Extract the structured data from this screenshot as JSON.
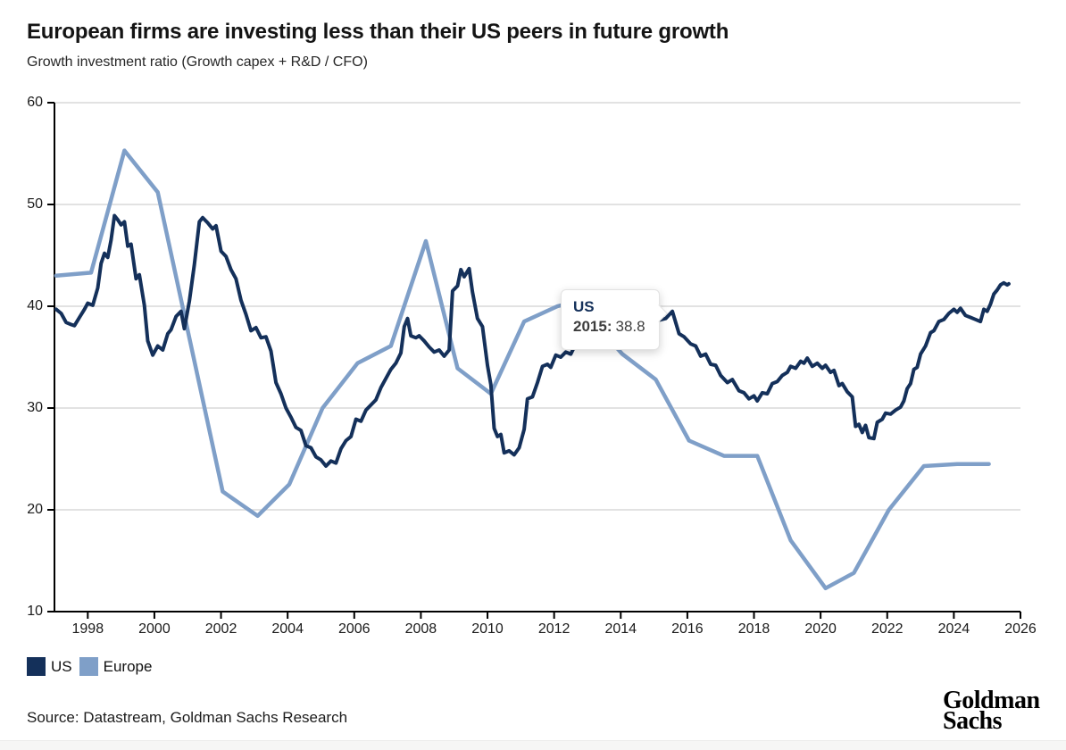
{
  "chart_data": {
    "type": "line",
    "title": "European firms are investing less than their US peers in future growth",
    "subtitle": "Growth investment ratio (Growth capex + R&D / CFO)",
    "xlabel": "",
    "ylabel": "Growth investment ratio (Growth capex + R&D / CFO)",
    "xlim": [
      1997,
      2026
    ],
    "ylim": [
      10,
      60
    ],
    "x_ticks": [
      1998,
      2000,
      2002,
      2004,
      2006,
      2008,
      2010,
      2012,
      2014,
      2016,
      2018,
      2020,
      2022,
      2024,
      2026
    ],
    "y_ticks": [
      10,
      20,
      30,
      40,
      50,
      60
    ],
    "grid": "horizontal",
    "gridline_color": "#d9d9d9",
    "axis_color": "#000000",
    "legend_position": "bottom-left",
    "series": [
      {
        "name": "US",
        "color": "#14305a",
        "width": 4,
        "points": [
          [
            1997.05,
            39.7
          ],
          [
            1997.2,
            39.3
          ],
          [
            1997.35,
            38.4
          ],
          [
            1997.5,
            38.2
          ],
          [
            1997.6,
            38.1
          ],
          [
            1997.75,
            38.9
          ],
          [
            1997.9,
            39.7
          ],
          [
            1998.0,
            40.3
          ],
          [
            1998.15,
            40.1
          ],
          [
            1998.3,
            41.8
          ],
          [
            1998.4,
            44.2
          ],
          [
            1998.5,
            45.2
          ],
          [
            1998.6,
            44.8
          ],
          [
            1998.7,
            46.5
          ],
          [
            1998.8,
            48.9
          ],
          [
            1998.9,
            48.5
          ],
          [
            1999.0,
            48.0
          ],
          [
            1999.1,
            48.3
          ],
          [
            1999.2,
            45.9
          ],
          [
            1999.3,
            46.1
          ],
          [
            1999.45,
            42.7
          ],
          [
            1999.55,
            43.1
          ],
          [
            1999.7,
            40.1
          ],
          [
            1999.8,
            36.6
          ],
          [
            1999.95,
            35.2
          ],
          [
            2000.1,
            36.1
          ],
          [
            2000.25,
            35.7
          ],
          [
            2000.4,
            37.3
          ],
          [
            2000.5,
            37.7
          ],
          [
            2000.65,
            39.0
          ],
          [
            2000.8,
            39.5
          ],
          [
            2000.9,
            37.8
          ],
          [
            2001.05,
            40.5
          ],
          [
            2001.2,
            44.1
          ],
          [
            2001.35,
            48.3
          ],
          [
            2001.45,
            48.7
          ],
          [
            2001.6,
            48.2
          ],
          [
            2001.75,
            47.6
          ],
          [
            2001.85,
            47.9
          ],
          [
            2002.0,
            45.4
          ],
          [
            2002.15,
            44.9
          ],
          [
            2002.3,
            43.6
          ],
          [
            2002.45,
            42.7
          ],
          [
            2002.6,
            40.6
          ],
          [
            2002.75,
            39.2
          ],
          [
            2002.9,
            37.6
          ],
          [
            2003.05,
            37.9
          ],
          [
            2003.2,
            36.9
          ],
          [
            2003.35,
            37.0
          ],
          [
            2003.5,
            35.6
          ],
          [
            2003.65,
            32.5
          ],
          [
            2003.8,
            31.4
          ],
          [
            2003.95,
            30.0
          ],
          [
            2004.1,
            29.1
          ],
          [
            2004.25,
            28.1
          ],
          [
            2004.4,
            27.8
          ],
          [
            2004.55,
            26.3
          ],
          [
            2004.7,
            26.1
          ],
          [
            2004.85,
            25.2
          ],
          [
            2005.0,
            24.9
          ],
          [
            2005.15,
            24.3
          ],
          [
            2005.3,
            24.8
          ],
          [
            2005.45,
            24.6
          ],
          [
            2005.6,
            26.0
          ],
          [
            2005.75,
            26.8
          ],
          [
            2005.9,
            27.2
          ],
          [
            2006.05,
            28.9
          ],
          [
            2006.2,
            28.7
          ],
          [
            2006.35,
            29.8
          ],
          [
            2006.5,
            30.3
          ],
          [
            2006.65,
            30.8
          ],
          [
            2006.8,
            32.0
          ],
          [
            2006.95,
            32.9
          ],
          [
            2007.1,
            33.8
          ],
          [
            2007.25,
            34.4
          ],
          [
            2007.4,
            35.4
          ],
          [
            2007.5,
            38.0
          ],
          [
            2007.6,
            38.8
          ],
          [
            2007.7,
            37.1
          ],
          [
            2007.85,
            36.9
          ],
          [
            2007.95,
            37.1
          ],
          [
            2008.1,
            36.6
          ],
          [
            2008.25,
            36.0
          ],
          [
            2008.4,
            35.5
          ],
          [
            2008.55,
            35.7
          ],
          [
            2008.7,
            35.1
          ],
          [
            2008.85,
            35.7
          ],
          [
            2008.95,
            41.5
          ],
          [
            2009.1,
            42.0
          ],
          [
            2009.2,
            43.6
          ],
          [
            2009.3,
            42.9
          ],
          [
            2009.45,
            43.7
          ],
          [
            2009.55,
            41.4
          ],
          [
            2009.7,
            38.8
          ],
          [
            2009.85,
            38.0
          ],
          [
            2010.0,
            34.2
          ],
          [
            2010.1,
            32.3
          ],
          [
            2010.2,
            28.0
          ],
          [
            2010.3,
            27.2
          ],
          [
            2010.4,
            27.4
          ],
          [
            2010.5,
            25.6
          ],
          [
            2010.65,
            25.8
          ],
          [
            2010.8,
            25.4
          ],
          [
            2010.95,
            26.1
          ],
          [
            2011.1,
            27.9
          ],
          [
            2011.2,
            30.9
          ],
          [
            2011.35,
            31.1
          ],
          [
            2011.5,
            32.5
          ],
          [
            2011.65,
            34.1
          ],
          [
            2011.8,
            34.3
          ],
          [
            2011.9,
            34.0
          ],
          [
            2012.05,
            35.2
          ],
          [
            2012.2,
            35.0
          ],
          [
            2012.35,
            35.5
          ],
          [
            2012.5,
            35.3
          ],
          [
            2012.65,
            36.3
          ],
          [
            2012.8,
            36.2
          ],
          [
            2012.95,
            37.1
          ],
          [
            2013.3,
            37.8
          ],
          [
            2013.8,
            38.4
          ],
          [
            2014.3,
            38.8
          ],
          [
            2014.8,
            38.5
          ],
          [
            2015.1,
            38.6
          ],
          [
            2015.35,
            38.8
          ],
          [
            2015.55,
            39.5
          ],
          [
            2015.75,
            37.3
          ],
          [
            2015.9,
            37.0
          ],
          [
            2016.1,
            36.3
          ],
          [
            2016.25,
            36.1
          ],
          [
            2016.4,
            35.1
          ],
          [
            2016.55,
            35.3
          ],
          [
            2016.7,
            34.3
          ],
          [
            2016.85,
            34.2
          ],
          [
            2017.0,
            33.2
          ],
          [
            2017.2,
            32.5
          ],
          [
            2017.35,
            32.8
          ],
          [
            2017.55,
            31.7
          ],
          [
            2017.7,
            31.5
          ],
          [
            2017.85,
            30.9
          ],
          [
            2018.0,
            31.2
          ],
          [
            2018.1,
            30.7
          ],
          [
            2018.25,
            31.5
          ],
          [
            2018.4,
            31.4
          ],
          [
            2018.55,
            32.4
          ],
          [
            2018.7,
            32.6
          ],
          [
            2018.85,
            33.2
          ],
          [
            2019.0,
            33.5
          ],
          [
            2019.1,
            34.1
          ],
          [
            2019.25,
            33.9
          ],
          [
            2019.4,
            34.6
          ],
          [
            2019.5,
            34.4
          ],
          [
            2019.6,
            34.9
          ],
          [
            2019.75,
            34.1
          ],
          [
            2019.9,
            34.4
          ],
          [
            2020.05,
            33.9
          ],
          [
            2020.15,
            34.2
          ],
          [
            2020.3,
            33.5
          ],
          [
            2020.4,
            33.7
          ],
          [
            2020.55,
            32.2
          ],
          [
            2020.65,
            32.4
          ],
          [
            2020.8,
            31.6
          ],
          [
            2020.95,
            31.1
          ],
          [
            2021.05,
            28.2
          ],
          [
            2021.15,
            28.4
          ],
          [
            2021.25,
            27.6
          ],
          [
            2021.35,
            28.3
          ],
          [
            2021.45,
            27.1
          ],
          [
            2021.6,
            27.0
          ],
          [
            2021.7,
            28.6
          ],
          [
            2021.85,
            28.9
          ],
          [
            2021.95,
            29.5
          ],
          [
            2022.1,
            29.4
          ],
          [
            2022.25,
            29.8
          ],
          [
            2022.4,
            30.1
          ],
          [
            2022.5,
            30.7
          ],
          [
            2022.6,
            31.9
          ],
          [
            2022.7,
            32.4
          ],
          [
            2022.8,
            33.8
          ],
          [
            2022.9,
            34.0
          ],
          [
            2023.0,
            35.3
          ],
          [
            2023.15,
            36.1
          ],
          [
            2023.3,
            37.4
          ],
          [
            2023.4,
            37.6
          ],
          [
            2023.55,
            38.5
          ],
          [
            2023.7,
            38.7
          ],
          [
            2023.85,
            39.3
          ],
          [
            2024.0,
            39.7
          ],
          [
            2024.1,
            39.4
          ],
          [
            2024.2,
            39.8
          ],
          [
            2024.35,
            39.1
          ],
          [
            2024.5,
            38.9
          ],
          [
            2024.65,
            38.7
          ],
          [
            2024.8,
            38.5
          ],
          [
            2024.9,
            39.7
          ],
          [
            2025.0,
            39.5
          ],
          [
            2025.1,
            40.2
          ],
          [
            2025.2,
            41.2
          ],
          [
            2025.3,
            41.6
          ],
          [
            2025.4,
            42.1
          ],
          [
            2025.5,
            42.3
          ],
          [
            2025.6,
            42.1
          ],
          [
            2025.65,
            42.2
          ]
        ]
      },
      {
        "name": "Europe",
        "color": "#7f9fc8",
        "width": 4.5,
        "points": [
          [
            1997.05,
            43.0
          ],
          [
            1998.1,
            43.3
          ],
          [
            1999.1,
            55.3
          ],
          [
            2000.1,
            51.2
          ],
          [
            2002.05,
            21.8
          ],
          [
            2003.1,
            19.4
          ],
          [
            2004.05,
            22.5
          ],
          [
            2005.05,
            30.0
          ],
          [
            2006.1,
            34.4
          ],
          [
            2007.1,
            36.1
          ],
          [
            2008.15,
            46.4
          ],
          [
            2009.1,
            33.9
          ],
          [
            2010.1,
            31.4
          ],
          [
            2011.1,
            38.5
          ],
          [
            2012.1,
            40.0
          ],
          [
            2012.6,
            40.4
          ],
          [
            2013.05,
            39.0
          ],
          [
            2014.05,
            35.3
          ],
          [
            2015.05,
            32.8
          ],
          [
            2016.05,
            26.8
          ],
          [
            2017.1,
            25.3
          ],
          [
            2018.1,
            25.3
          ],
          [
            2019.1,
            17.0
          ],
          [
            2020.15,
            12.3
          ],
          [
            2021.0,
            13.8
          ],
          [
            2022.05,
            20.0
          ],
          [
            2023.1,
            24.3
          ],
          [
            2024.1,
            24.5
          ],
          [
            2025.05,
            24.5
          ]
        ]
      }
    ]
  },
  "tooltip": {
    "series_label": "US",
    "year_label": "2015:",
    "value": "38.8",
    "point": {
      "year": 2015,
      "value": 38.8
    }
  },
  "legend": {
    "items": [
      {
        "label": "US",
        "color": "#14305a"
      },
      {
        "label": "Europe",
        "color": "#7f9fc8"
      }
    ]
  },
  "footer": {
    "source": "Source: Datastream, Goldman Sachs Research",
    "logo": [
      "Goldman",
      "Sachs"
    ]
  }
}
